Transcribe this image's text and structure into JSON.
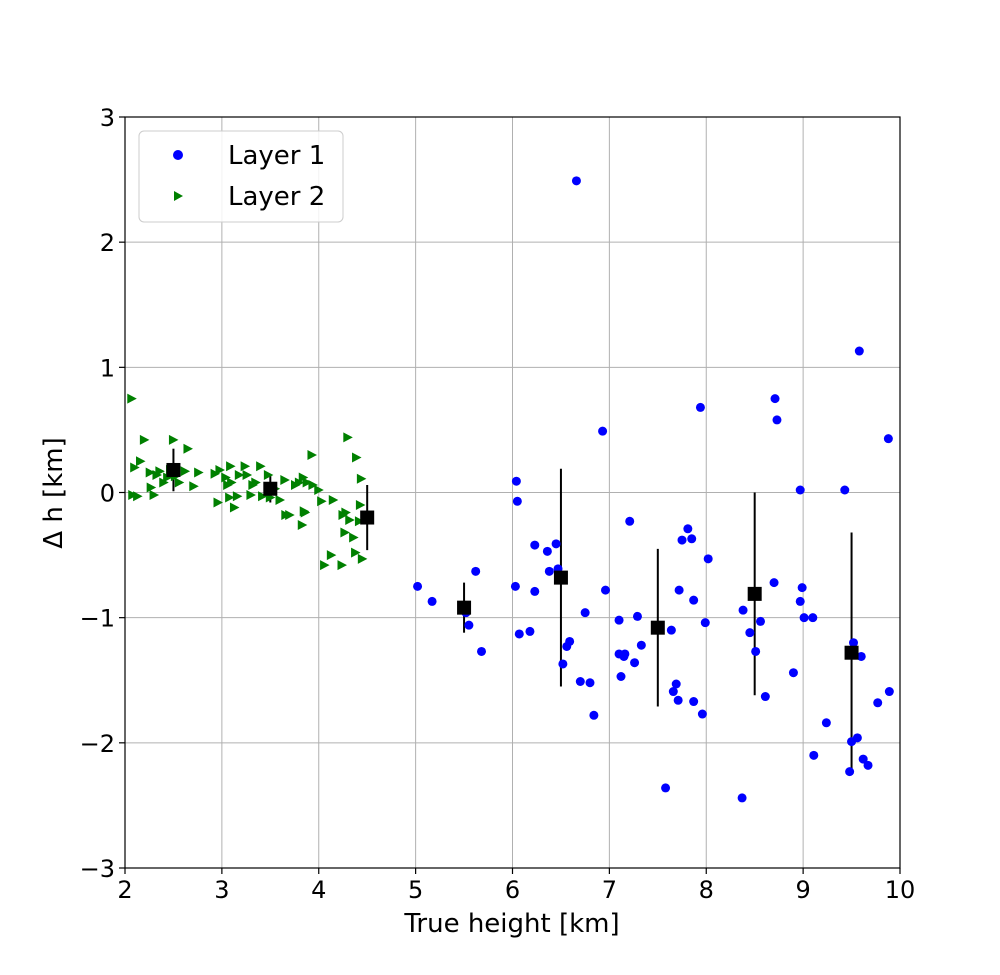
{
  "chart_data": {
    "type": "scatter",
    "title": "",
    "xlabel": "True height [km]",
    "ylabel": "Δ h [km]",
    "xlim": [
      2,
      10
    ],
    "ylim": [
      -3,
      3
    ],
    "xticks": [
      2,
      3,
      4,
      5,
      6,
      7,
      8,
      9,
      10
    ],
    "yticks": [
      -3,
      -2,
      -1,
      0,
      1,
      2,
      3
    ],
    "xtick_labels": [
      "2",
      "3",
      "4",
      "5",
      "6",
      "7",
      "8",
      "9",
      "10"
    ],
    "ytick_labels": [
      "−3",
      "−2",
      "−1",
      "0",
      "1",
      "2",
      "3"
    ],
    "grid": true,
    "legend_position": "top-left",
    "series": [
      {
        "name": "Layer 1",
        "marker": "circle",
        "color": "#0000ff",
        "points": [
          [
            5.02,
            -0.75
          ],
          [
            5.17,
            -0.87
          ],
          [
            5.52,
            -0.96
          ],
          [
            5.55,
            -1.06
          ],
          [
            5.62,
            -0.63
          ],
          [
            5.68,
            -1.27
          ],
          [
            6.03,
            -0.75
          ],
          [
            6.04,
            0.09
          ],
          [
            6.05,
            -0.07
          ],
          [
            6.07,
            -1.13
          ],
          [
            6.18,
            -1.11
          ],
          [
            6.23,
            -0.79
          ],
          [
            6.23,
            -0.42
          ],
          [
            6.36,
            -0.47
          ],
          [
            6.38,
            -0.63
          ],
          [
            6.45,
            -0.41
          ],
          [
            6.47,
            -0.61
          ],
          [
            6.52,
            -1.37
          ],
          [
            6.56,
            -1.23
          ],
          [
            6.59,
            -1.19
          ],
          [
            6.66,
            2.49
          ],
          [
            6.7,
            -1.51
          ],
          [
            6.75,
            -0.96
          ],
          [
            6.8,
            -1.52
          ],
          [
            6.84,
            -1.78
          ],
          [
            6.93,
            0.49
          ],
          [
            6.96,
            -0.78
          ],
          [
            7.1,
            -1.02
          ],
          [
            7.1,
            -1.29
          ],
          [
            7.12,
            -1.47
          ],
          [
            7.15,
            -1.31
          ],
          [
            7.16,
            -1.29
          ],
          [
            7.21,
            -0.23
          ],
          [
            7.26,
            -1.36
          ],
          [
            7.29,
            -0.99
          ],
          [
            7.33,
            -1.22
          ],
          [
            7.58,
            -2.36
          ],
          [
            7.64,
            -1.1
          ],
          [
            7.66,
            -1.59
          ],
          [
            7.69,
            -1.53
          ],
          [
            7.71,
            -1.66
          ],
          [
            7.72,
            -0.78
          ],
          [
            7.75,
            -0.38
          ],
          [
            7.81,
            -0.29
          ],
          [
            7.85,
            -0.37
          ],
          [
            7.87,
            -1.67
          ],
          [
            7.87,
            -0.86
          ],
          [
            7.94,
            0.68
          ],
          [
            7.96,
            -1.77
          ],
          [
            7.99,
            -1.04
          ],
          [
            8.02,
            -0.53
          ],
          [
            8.37,
            -2.44
          ],
          [
            8.38,
            -0.94
          ],
          [
            8.45,
            -1.12
          ],
          [
            8.51,
            -1.27
          ],
          [
            8.56,
            -1.03
          ],
          [
            8.61,
            -1.63
          ],
          [
            8.7,
            -0.72
          ],
          [
            8.71,
            0.75
          ],
          [
            8.73,
            0.58
          ],
          [
            8.9,
            -1.44
          ],
          [
            8.97,
            -0.87
          ],
          [
            8.97,
            0.02
          ],
          [
            8.99,
            -0.76
          ],
          [
            9.01,
            -1.0
          ],
          [
            9.1,
            -1.0
          ],
          [
            9.11,
            -2.1
          ],
          [
            9.24,
            -1.84
          ],
          [
            9.43,
            0.02
          ],
          [
            9.48,
            -2.23
          ],
          [
            9.5,
            -1.99
          ],
          [
            9.52,
            -1.2
          ],
          [
            9.56,
            -1.96
          ],
          [
            9.58,
            1.13
          ],
          [
            9.6,
            -1.31
          ],
          [
            9.62,
            -2.13
          ],
          [
            9.67,
            -2.18
          ],
          [
            9.77,
            -1.68
          ],
          [
            9.88,
            0.43
          ],
          [
            9.89,
            -1.59
          ]
        ]
      },
      {
        "name": "Layer 2",
        "marker": "triangle-right",
        "color": "#008000",
        "points": [
          [
            2.07,
            0.75
          ],
          [
            2.08,
            -0.02
          ],
          [
            2.1,
            0.2
          ],
          [
            2.13,
            -0.03
          ],
          [
            2.16,
            0.25
          ],
          [
            2.2,
            0.42
          ],
          [
            2.26,
            0.16
          ],
          [
            2.27,
            0.04
          ],
          [
            2.3,
            -0.02
          ],
          [
            2.33,
            0.14
          ],
          [
            2.36,
            0.17
          ],
          [
            2.4,
            0.08
          ],
          [
            2.44,
            0.12
          ],
          [
            2.47,
            0.18
          ],
          [
            2.5,
            0.42
          ],
          [
            2.52,
            0.13
          ],
          [
            2.56,
            0.08
          ],
          [
            2.62,
            0.17
          ],
          [
            2.65,
            0.35
          ],
          [
            2.71,
            0.05
          ],
          [
            2.76,
            0.16
          ],
          [
            2.93,
            0.15
          ],
          [
            2.96,
            -0.08
          ],
          [
            2.98,
            0.18
          ],
          [
            3.04,
            0.12
          ],
          [
            3.06,
            0.06
          ],
          [
            3.08,
            -0.04
          ],
          [
            3.09,
            0.21
          ],
          [
            3.1,
            0.08
          ],
          [
            3.13,
            -0.12
          ],
          [
            3.16,
            -0.03
          ],
          [
            3.18,
            0.14
          ],
          [
            3.24,
            0.21
          ],
          [
            3.26,
            0.14
          ],
          [
            3.3,
            -0.02
          ],
          [
            3.32,
            0.06
          ],
          [
            3.35,
            0.08
          ],
          [
            3.4,
            0.21
          ],
          [
            3.42,
            -0.03
          ],
          [
            3.48,
            0.14
          ],
          [
            3.5,
            -0.04
          ],
          [
            3.55,
            0.03
          ],
          [
            3.6,
            -0.06
          ],
          [
            3.65,
            0.1
          ],
          [
            3.66,
            -0.18
          ],
          [
            3.7,
            -0.18
          ],
          [
            3.76,
            0.06
          ],
          [
            3.8,
            0.08
          ],
          [
            3.83,
            -0.26
          ],
          [
            3.84,
            0.12
          ],
          [
            3.85,
            -0.15
          ],
          [
            3.86,
            -0.16
          ],
          [
            3.88,
            0.08
          ],
          [
            3.93,
            0.3
          ],
          [
            3.94,
            0.06
          ],
          [
            4.0,
            0.02
          ],
          [
            4.03,
            -0.07
          ],
          [
            4.06,
            -0.58
          ],
          [
            4.13,
            -0.5
          ],
          [
            4.15,
            -0.06
          ],
          [
            4.24,
            -0.58
          ],
          [
            4.25,
            -0.18
          ],
          [
            4.27,
            -0.32
          ],
          [
            4.28,
            -0.16
          ],
          [
            4.3,
            0.44
          ],
          [
            4.32,
            -0.22
          ],
          [
            4.36,
            -0.36
          ],
          [
            4.38,
            -0.48
          ],
          [
            4.39,
            0.28
          ],
          [
            4.42,
            -0.23
          ],
          [
            4.43,
            -0.1
          ],
          [
            4.44,
            0.11
          ],
          [
            4.45,
            -0.53
          ]
        ]
      },
      {
        "name": "",
        "marker": "square",
        "color": "#000000",
        "points": [
          [
            2.5,
            0.18
          ],
          [
            3.5,
            0.03
          ],
          [
            4.5,
            -0.2
          ],
          [
            5.5,
            -0.92
          ],
          [
            6.5,
            -0.68
          ],
          [
            7.5,
            -1.08
          ],
          [
            8.5,
            -0.81
          ],
          [
            9.5,
            -1.28
          ]
        ],
        "error_bars": [
          0.17,
          0.11,
          0.26,
          0.2,
          0.87,
          0.63,
          0.81,
          0.96
        ]
      }
    ]
  },
  "legend": {
    "items": [
      {
        "label": "Layer 1",
        "color": "#0000ff",
        "marker": "circle"
      },
      {
        "label": "Layer 2",
        "color": "#008000",
        "marker": "triangle-right"
      }
    ]
  }
}
